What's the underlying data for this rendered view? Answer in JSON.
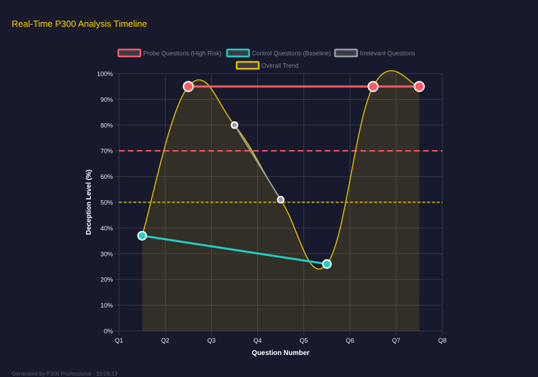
{
  "title": "Real-Time P300 Analysis Timeline",
  "footer": "Generated by P300 Professional - 10:05:13",
  "chart_data": {
    "type": "line",
    "xlabel": "Question Number",
    "ylabel": "Deception Level (%)",
    "x_ticks": [
      "Q1",
      "Q2",
      "Q3",
      "Q4",
      "Q5",
      "Q6",
      "Q7",
      "Q8"
    ],
    "y_ticks": [
      "0%",
      "10%",
      "20%",
      "30%",
      "40%",
      "50%",
      "60%",
      "70%",
      "80%",
      "90%",
      "100%"
    ],
    "ylim": [
      0,
      100
    ],
    "grid": true,
    "legend_position": "top",
    "point_positions": [
      1.5,
      2.5,
      3.5,
      4.5,
      5.5,
      6.5,
      7.5
    ],
    "series": [
      {
        "name": "Probe Questions (High Risk)",
        "color": "#ff5a66",
        "values": [
          null,
          95,
          null,
          null,
          null,
          95,
          95
        ]
      },
      {
        "name": "Control Questions (Baseline)",
        "color": "#1fcfc0",
        "values": [
          37,
          null,
          null,
          null,
          26,
          null,
          null
        ]
      },
      {
        "name": "Irrelevant Questions",
        "color": "#9a9aa5",
        "values": [
          null,
          null,
          80,
          51,
          null,
          null,
          null
        ]
      },
      {
        "name": "Overall Trend",
        "color": "#e6c000",
        "values": [
          37,
          95,
          80,
          51,
          26,
          95,
          95
        ]
      }
    ],
    "thresholds": [
      {
        "value": 70,
        "color": "#ff5a66",
        "style": "dashed"
      },
      {
        "value": 50,
        "color": "#e6c000",
        "style": "dotted"
      }
    ]
  }
}
